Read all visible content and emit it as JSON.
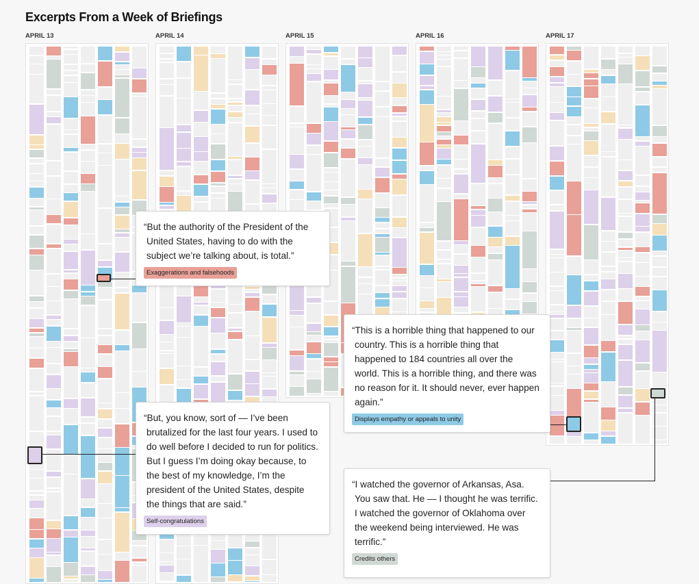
{
  "title": "Excerpts From a Week of Briefings",
  "days": [
    "APRIL 13",
    "APRIL 14",
    "APRIL 15",
    "APRIL 16",
    "APRIL 17"
  ],
  "colors": {
    "falsehood": "#e8a097",
    "self": "#ddd0ea",
    "empathy": "#8ecae6",
    "credits": "#d0d8d4",
    "other": "#f5dfb8",
    "neutral": "#efefef"
  },
  "callouts": [
    {
      "quote": "“But the authority of the President of the United States, having to do with the subject we’re talking about, is total.”",
      "tag": "Exaggerations and falsehoods",
      "color": "#e8a097"
    },
    {
      "quote": "“But, you know, sort of — I’ve been brutalized for the last four years. I used to do well before I decided to run for politics. But I guess I’m doing okay because, to the best of my knowledge, I’m the president of the United States, despite the things that are said.”",
      "tag": "Self-congratulations",
      "color": "#ddd0ea"
    },
    {
      "quote": "“This is a horrible thing that happened to our country. This is a horrible thing that happened to 184 countries all over the world. This is a horrible thing, and there was no reason for it. It should never, ever happen again.”",
      "tag": "Displays empathy or appeals to unity",
      "color": "#8ecae6"
    },
    {
      "quote": "“I watched the governor of Arkansas, Asa. You saw that. He — I thought he was terrific. I watched the governor of Oklahoma over the weekend being interviewed. He was terrific.”",
      "tag": "Credits others",
      "color": "#d0d8d4"
    }
  ]
}
